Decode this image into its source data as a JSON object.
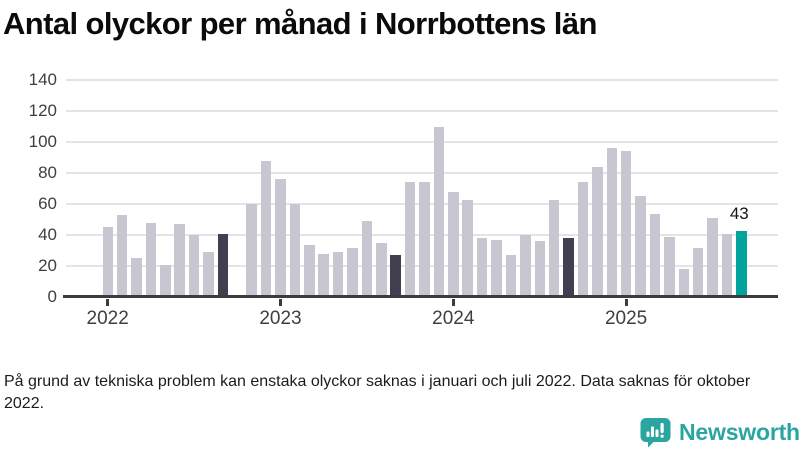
{
  "title": "Antal olyckor per månad i Norrbottens län",
  "footnote": "På grund av tekniska problem kan enstaka olyckor saknas i januari och juli 2022. Data saknas för oktober 2022.",
  "annotation": {
    "label": "43"
  },
  "logo": {
    "name": "Newsworthy"
  },
  "colors": {
    "light": "#c8c6d1",
    "dark": "#413f50",
    "accent": "#00a49b",
    "grid": "#e4e3e6",
    "axis": "#3c3c3c",
    "logo_teal": "#2aa5a0"
  },
  "axes": {
    "y_labels": [
      "0",
      "20",
      "40",
      "60",
      "80",
      "100",
      "120",
      "140"
    ],
    "x_labels": [
      "2022",
      "2023",
      "2024",
      "2025"
    ]
  },
  "chart_data": {
    "type": "bar",
    "title": "Antal olyckor per månad i Norrbottens län",
    "xlabel": "",
    "ylabel": "",
    "ylim": [
      0,
      140
    ],
    "yticks": [
      0,
      20,
      40,
      60,
      80,
      100,
      120,
      140
    ],
    "grid": true,
    "legend": false,
    "note": "missing value = null (oktober 2022); role dark = september previous years; role accent = latest month",
    "bars": [
      {
        "month": "2022-01",
        "value": 45,
        "role": "light"
      },
      {
        "month": "2022-02",
        "value": 53,
        "role": "light"
      },
      {
        "month": "2022-03",
        "value": 25,
        "role": "light"
      },
      {
        "month": "2022-04",
        "value": 48,
        "role": "light"
      },
      {
        "month": "2022-05",
        "value": 21,
        "role": "light"
      },
      {
        "month": "2022-06",
        "value": 47,
        "role": "light"
      },
      {
        "month": "2022-07",
        "value": 40,
        "role": "light"
      },
      {
        "month": "2022-08",
        "value": 29,
        "role": "light"
      },
      {
        "month": "2022-09",
        "value": 41,
        "role": "dark"
      },
      {
        "month": "2022-10",
        "value": null,
        "role": "missing"
      },
      {
        "month": "2022-11",
        "value": 60,
        "role": "light"
      },
      {
        "month": "2022-12",
        "value": 88,
        "role": "light"
      },
      {
        "month": "2023-01",
        "value": 76,
        "role": "light"
      },
      {
        "month": "2023-02",
        "value": 60,
        "role": "light"
      },
      {
        "month": "2023-03",
        "value": 34,
        "role": "light"
      },
      {
        "month": "2023-04",
        "value": 28,
        "role": "light"
      },
      {
        "month": "2023-05",
        "value": 29,
        "role": "light"
      },
      {
        "month": "2023-06",
        "value": 32,
        "role": "light"
      },
      {
        "month": "2023-07",
        "value": 49,
        "role": "light"
      },
      {
        "month": "2023-08",
        "value": 35,
        "role": "light"
      },
      {
        "month": "2023-09",
        "value": 27,
        "role": "dark"
      },
      {
        "month": "2023-10",
        "value": 74,
        "role": "light"
      },
      {
        "month": "2023-11",
        "value": 74,
        "role": "light"
      },
      {
        "month": "2023-12",
        "value": 110,
        "role": "light"
      },
      {
        "month": "2024-01",
        "value": 68,
        "role": "light"
      },
      {
        "month": "2024-02",
        "value": 63,
        "role": "light"
      },
      {
        "month": "2024-03",
        "value": 38,
        "role": "light"
      },
      {
        "month": "2024-04",
        "value": 37,
        "role": "light"
      },
      {
        "month": "2024-05",
        "value": 27,
        "role": "light"
      },
      {
        "month": "2024-06",
        "value": 40,
        "role": "light"
      },
      {
        "month": "2024-07",
        "value": 36,
        "role": "light"
      },
      {
        "month": "2024-08",
        "value": 63,
        "role": "light"
      },
      {
        "month": "2024-09",
        "value": 38,
        "role": "dark"
      },
      {
        "month": "2024-10",
        "value": 74,
        "role": "light"
      },
      {
        "month": "2024-11",
        "value": 84,
        "role": "light"
      },
      {
        "month": "2024-12",
        "value": 96,
        "role": "light"
      },
      {
        "month": "2025-01",
        "value": 94,
        "role": "light"
      },
      {
        "month": "2025-02",
        "value": 65,
        "role": "light"
      },
      {
        "month": "2025-03",
        "value": 54,
        "role": "light"
      },
      {
        "month": "2025-04",
        "value": 39,
        "role": "light"
      },
      {
        "month": "2025-05",
        "value": 18,
        "role": "light"
      },
      {
        "month": "2025-06",
        "value": 32,
        "role": "light"
      },
      {
        "month": "2025-07",
        "value": 51,
        "role": "light"
      },
      {
        "month": "2025-08",
        "value": 41,
        "role": "light"
      },
      {
        "month": "2025-09",
        "value": 43,
        "role": "accent",
        "label": "43"
      }
    ]
  }
}
